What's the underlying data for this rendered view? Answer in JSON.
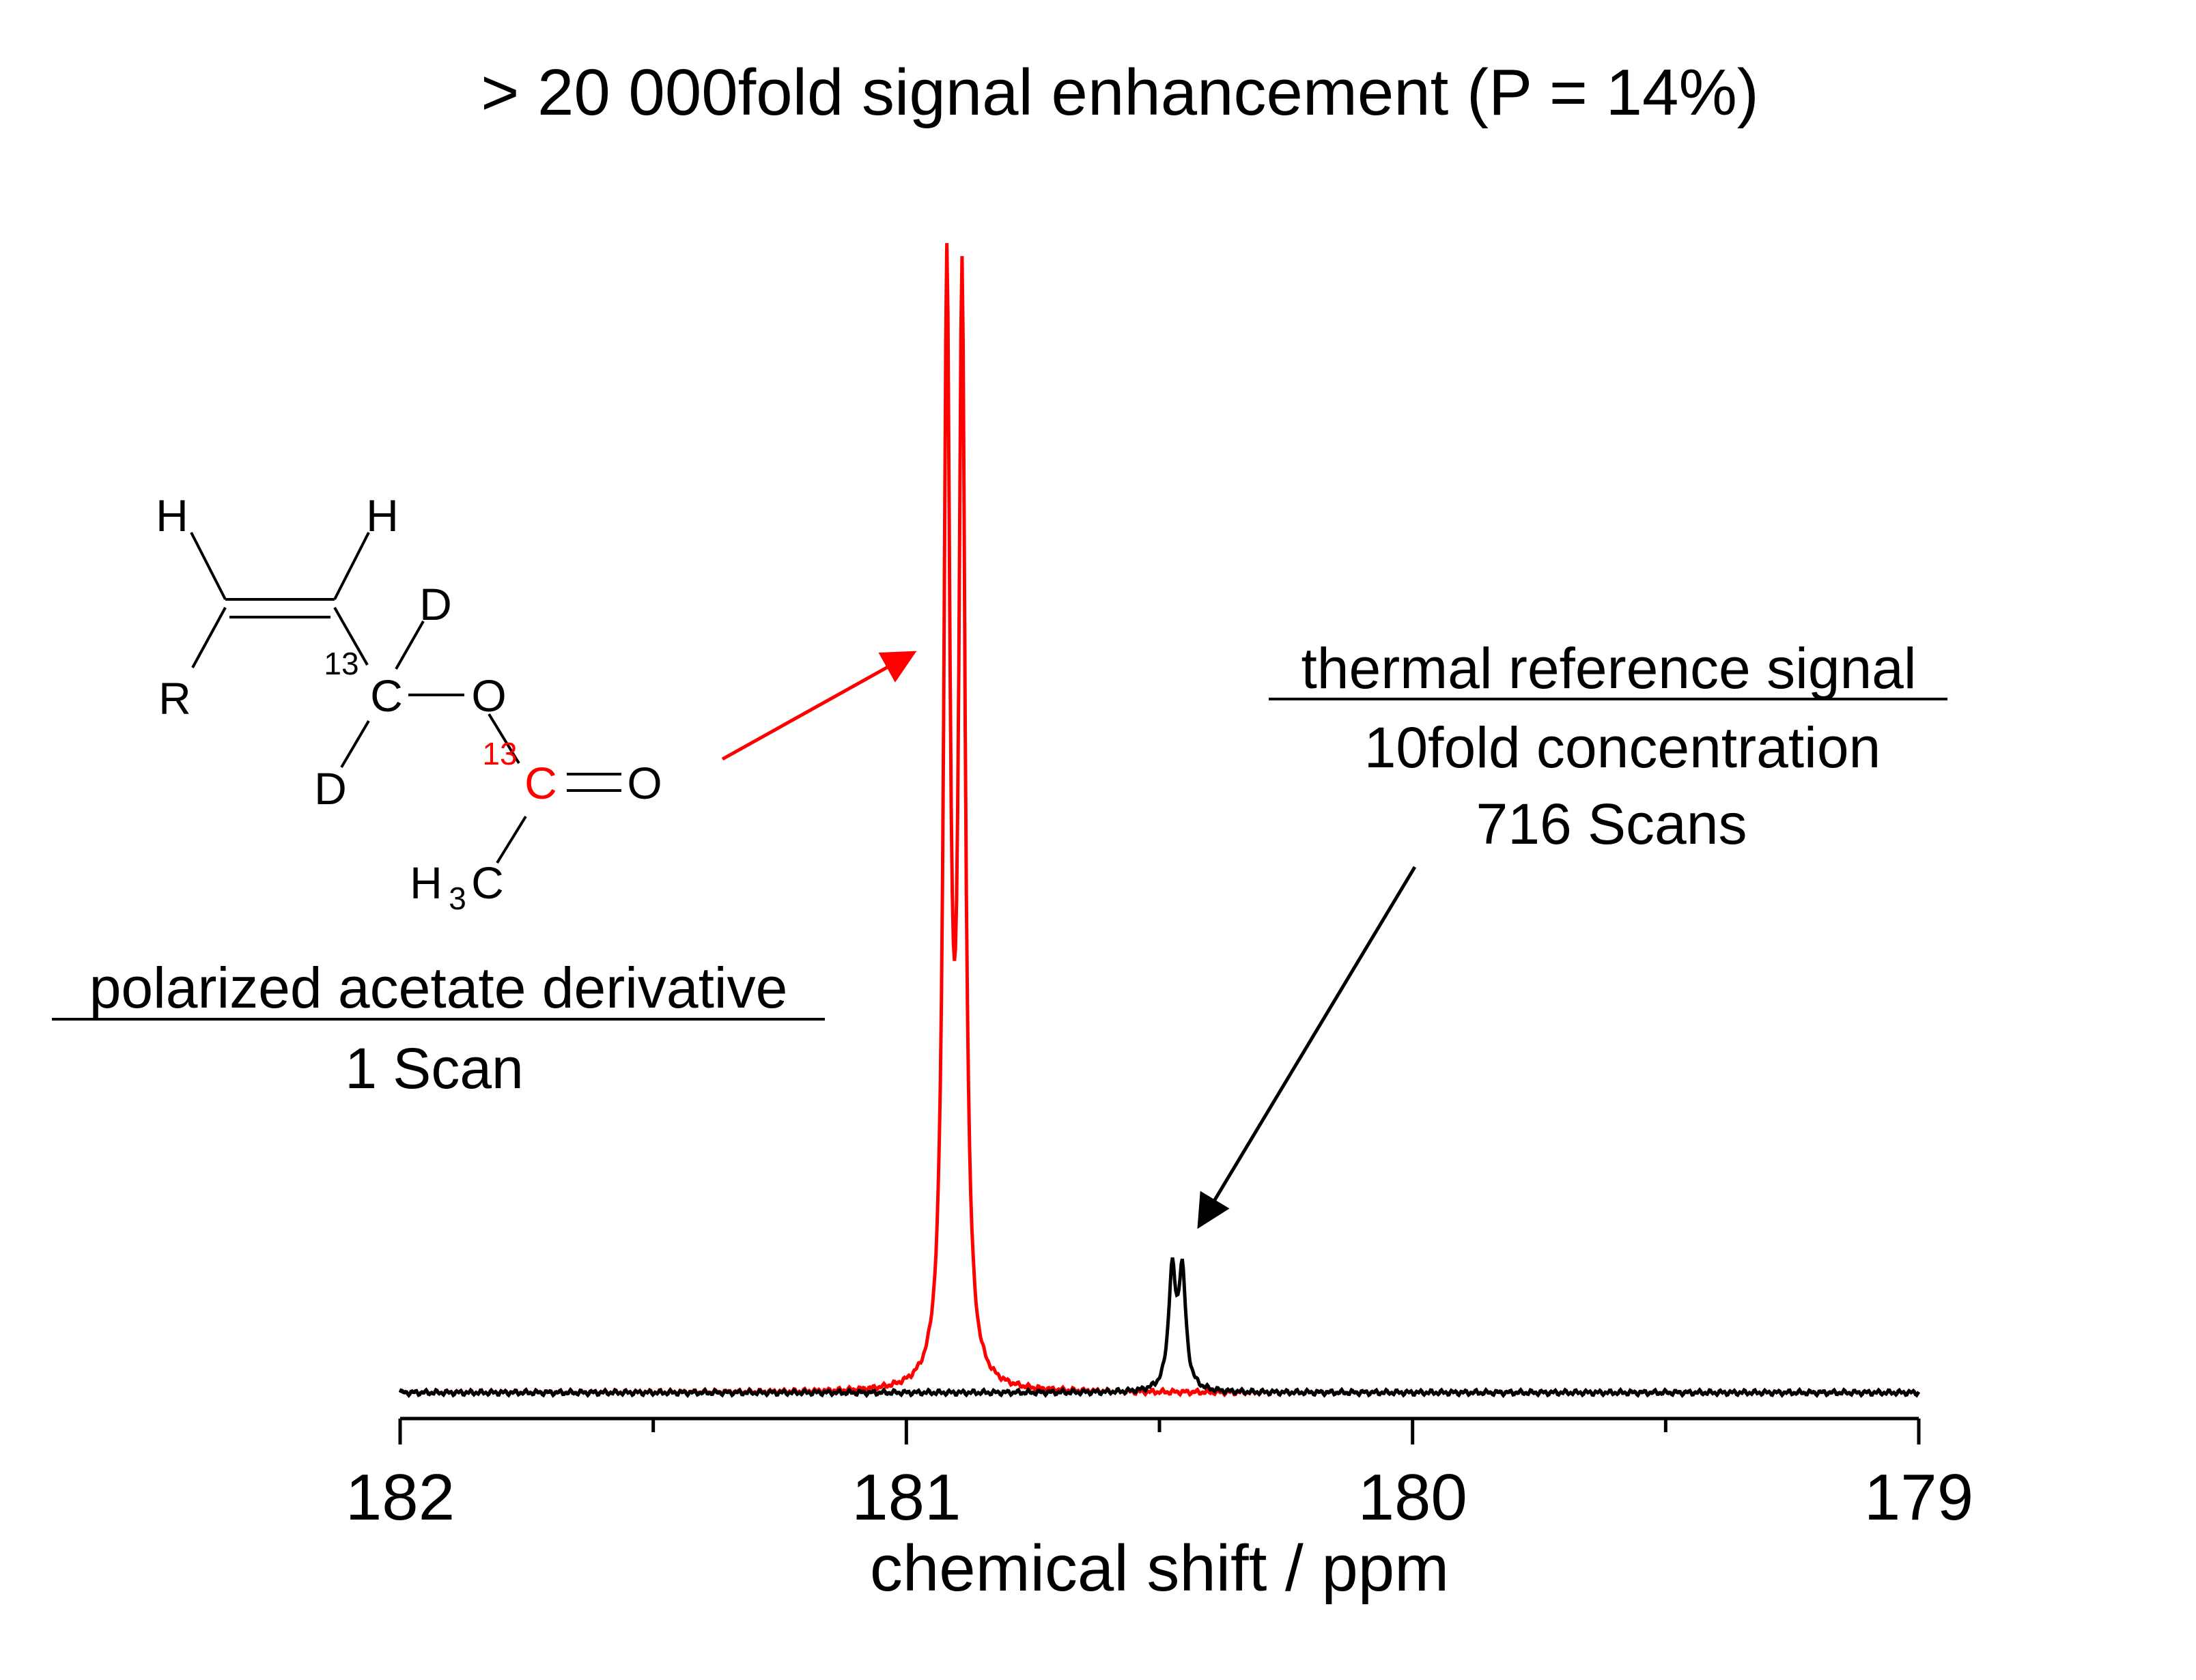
{
  "chart_data": {
    "type": "line",
    "title": "> 20 000fold signal enhancement (P = 14%)",
    "xlabel": "chemical shift / ppm",
    "ylabel": "",
    "xlim": [
      182,
      179
    ],
    "x_reversed": true,
    "y_axis_visible": false,
    "grid": false,
    "x_ticks": [
      182,
      181,
      180,
      179
    ],
    "x_tick_labels": [
      "182",
      "181",
      "180",
      "179"
    ],
    "x_minor_ticks": [
      181.5,
      180.5,
      179.5
    ],
    "series": [
      {
        "color": "#ff0000",
        "peaks": [
          {
            "x": 180.92,
            "height": 1.0
          },
          {
            "x": 180.89,
            "height": 0.985
          }
        ],
        "dip_between_peaks": 0.36
      },
      {
        "color": "#000000",
        "peaks": [
          {
            "x": 180.475,
            "height": 0.115
          },
          {
            "x": 180.455,
            "height": 0.115
          }
        ],
        "dip_between_peaks": 0.055
      }
    ]
  },
  "annotations": {
    "left_title": "polarized acetate derivative",
    "left_sub": "1 Scan",
    "right_title": "thermal reference signal",
    "right_line1": "10fold concentration",
    "right_line2": "716 Scans"
  },
  "molecule": {
    "atoms": {
      "h_left": "H",
      "h_right": "H",
      "r": "R",
      "d_top": "D",
      "d_bottom": "D",
      "c_ch2": "C",
      "c_ch2_label": "13",
      "o_ester": "O",
      "c_carbonyl": "C",
      "c_carbonyl_label": "13",
      "o_carbonyl": "O",
      "methyl_h": "H",
      "methyl_sub": "3",
      "methyl_c": "C"
    },
    "highlight_color": "#ff0000"
  }
}
